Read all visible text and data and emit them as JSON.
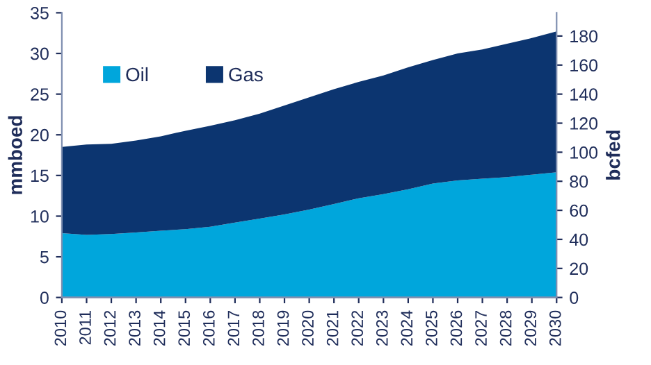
{
  "chart_data": {
    "type": "area",
    "stacked": true,
    "ylabel": "mmboed",
    "y2label": "bcfed",
    "categories": [
      "2010",
      "2011",
      "2012",
      "2013",
      "2014",
      "2015",
      "2016",
      "2017",
      "2018",
      "2019",
      "2020",
      "2021",
      "2022",
      "2023",
      "2024",
      "2025",
      "2026",
      "2027",
      "2028",
      "2029",
      "2030"
    ],
    "series": [
      {
        "name": "Oil",
        "color": "#00a6dc",
        "values": [
          7.9,
          7.7,
          7.8,
          8.0,
          8.2,
          8.4,
          8.7,
          9.2,
          9.7,
          10.2,
          10.8,
          11.5,
          12.2,
          12.7,
          13.3,
          14.0,
          14.4,
          14.6,
          14.8,
          15.1,
          15.4
        ]
      },
      {
        "name": "Gas",
        "color": "#0c3570",
        "values": [
          10.6,
          11.1,
          11.1,
          11.3,
          11.6,
          12.1,
          12.4,
          12.6,
          12.9,
          13.4,
          13.8,
          14.1,
          14.3,
          14.6,
          15.0,
          15.2,
          15.6,
          15.9,
          16.4,
          16.8,
          17.3
        ]
      }
    ],
    "ylim": [
      0,
      35
    ],
    "yticks": [
      0,
      5,
      10,
      15,
      20,
      25,
      30,
      35
    ],
    "y2lim": [
      0,
      196
    ],
    "y2ticks": [
      0,
      20,
      40,
      60,
      80,
      100,
      120,
      140,
      160,
      180
    ],
    "legend": "top left",
    "grid": false
  }
}
